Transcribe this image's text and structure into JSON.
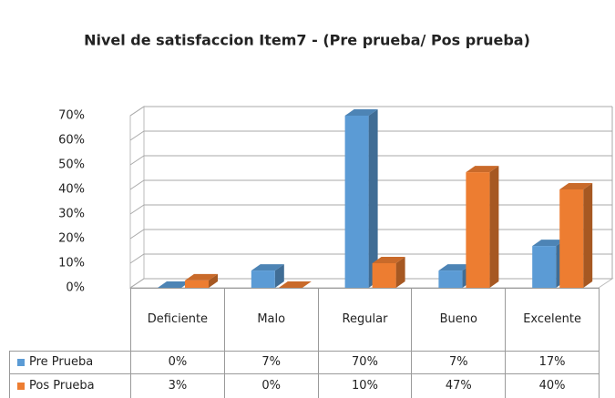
{
  "chart_data": {
    "type": "bar3d",
    "title": "Nivel de satisfaccion Item7 - (Pre prueba/ Pos prueba)",
    "categories": [
      "Deficiente",
      "Malo",
      "Regular",
      "Bueno",
      "Excelente"
    ],
    "series": [
      {
        "name": "Pre Prueba",
        "color": "#5b9bd5",
        "values": [
          0,
          7,
          70,
          7,
          17
        ],
        "value_labels": [
          "0%",
          "7%",
          "70%",
          "7%",
          "17%"
        ]
      },
      {
        "name": "Pos Prueba",
        "color": "#ed7d31",
        "values": [
          3,
          0,
          10,
          47,
          40
        ],
        "value_labels": [
          "3%",
          "0%",
          "10%",
          "47%",
          "40%"
        ]
      }
    ],
    "ylim": [
      0,
      70
    ],
    "yticks": [
      {
        "value": 0,
        "label": "0%"
      },
      {
        "value": 10,
        "label": "10%"
      },
      {
        "value": 20,
        "label": "20%"
      },
      {
        "value": 30,
        "label": "30%"
      },
      {
        "value": 40,
        "label": "40%"
      },
      {
        "value": 50,
        "label": "50%"
      },
      {
        "value": 60,
        "label": "60%"
      },
      {
        "value": 70,
        "label": "70%"
      }
    ],
    "grid": true
  }
}
